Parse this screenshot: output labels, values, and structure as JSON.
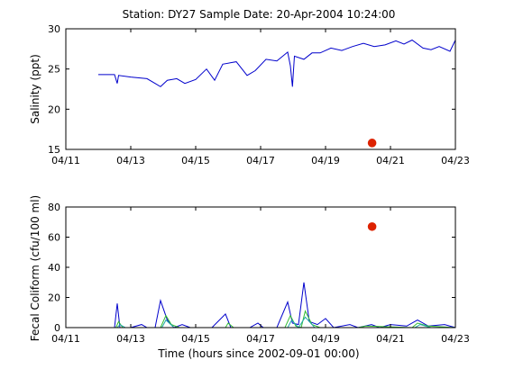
{
  "title": "Station: DY27  Sample Date: 20-Apr-2004 10:24:00",
  "xlabel": "Time (hours since 2002-09-01 00:00)",
  "chart_data": [
    {
      "type": "line",
      "ylabel": "Salinity (ppt)",
      "xlim": [
        "2004-04-11",
        "2004-04-23"
      ],
      "ylim": [
        15,
        30
      ],
      "xticks": [
        "04/11",
        "04/13",
        "04/15",
        "04/17",
        "04/19",
        "04/21",
        "04/23"
      ],
      "yticks": [
        15,
        20,
        25,
        30
      ],
      "grid": false,
      "series": [
        {
          "color": "#0000cc",
          "points": [
            [
              "2004-04-12T00:00",
              24.3
            ],
            [
              "2004-04-12T12:00",
              24.3
            ],
            [
              "2004-04-12T14:00",
              23.2
            ],
            [
              "2004-04-12T15:00",
              24.2
            ],
            [
              "2004-04-13T00:00",
              24.0
            ],
            [
              "2004-04-13T06:00",
              23.9
            ],
            [
              "2004-04-13T12:00",
              23.8
            ],
            [
              "2004-04-13T18:00",
              23.2
            ],
            [
              "2004-04-13T22:00",
              22.8
            ],
            [
              "2004-04-14T03:00",
              23.6
            ],
            [
              "2004-04-14T10:00",
              23.8
            ],
            [
              "2004-04-14T16:00",
              23.2
            ],
            [
              "2004-04-15T00:00",
              23.7
            ],
            [
              "2004-04-15T08:00",
              25.0
            ],
            [
              "2004-04-15T14:00",
              23.6
            ],
            [
              "2004-04-15T20:00",
              25.6
            ],
            [
              "2004-04-16T06:00",
              25.9
            ],
            [
              "2004-04-16T14:00",
              24.2
            ],
            [
              "2004-04-16T20:00",
              24.8
            ],
            [
              "2004-04-17T04:00",
              26.2
            ],
            [
              "2004-04-17T12:00",
              26.0
            ],
            [
              "2004-04-17T20:00",
              27.1
            ],
            [
              "2004-04-17T22:00",
              25.4
            ],
            [
              "2004-04-17T23:30",
              22.8
            ],
            [
              "2004-04-18T01:00",
              26.6
            ],
            [
              "2004-04-18T08:00",
              26.2
            ],
            [
              "2004-04-18T14:00",
              27.0
            ],
            [
              "2004-04-18T20:00",
              27.0
            ],
            [
              "2004-04-19T04:00",
              27.6
            ],
            [
              "2004-04-19T12:00",
              27.3
            ],
            [
              "2004-04-19T20:00",
              27.8
            ],
            [
              "2004-04-20T04:00",
              28.2
            ],
            [
              "2004-04-20T12:00",
              27.8
            ],
            [
              "2004-04-20T20:00",
              28.0
            ],
            [
              "2004-04-21T04:00",
              28.5
            ],
            [
              "2004-04-21T10:00",
              28.1
            ],
            [
              "2004-04-21T16:00",
              28.6
            ],
            [
              "2004-04-22T00:00",
              27.6
            ],
            [
              "2004-04-22T06:00",
              27.4
            ],
            [
              "2004-04-22T12:00",
              27.8
            ],
            [
              "2004-04-22T20:00",
              27.2
            ],
            [
              "2004-04-23T00:00",
              28.6
            ]
          ]
        }
      ],
      "sample_point": {
        "x": "2004-04-20T10:24",
        "y": 15.8,
        "color": "#dd2200"
      }
    },
    {
      "type": "line",
      "ylabel": "Fecal Coliform (cfu/100 ml)",
      "xlim": [
        "2004-04-11",
        "2004-04-23"
      ],
      "ylim": [
        0,
        80
      ],
      "xticks": [
        "04/11",
        "04/13",
        "04/15",
        "04/17",
        "04/19",
        "04/21",
        "04/23"
      ],
      "yticks": [
        0,
        20,
        40,
        60,
        80
      ],
      "grid": false,
      "series": [
        {
          "color": "#0000cc",
          "points": [
            [
              "2004-04-12T00:00",
              0
            ],
            [
              "2004-04-12T12:00",
              0
            ],
            [
              "2004-04-12T14:00",
              16
            ],
            [
              "2004-04-12T16:00",
              0
            ],
            [
              "2004-04-13T00:00",
              0
            ],
            [
              "2004-04-13T08:00",
              2
            ],
            [
              "2004-04-13T12:00",
              0
            ],
            [
              "2004-04-13T18:00",
              0
            ],
            [
              "2004-04-13T22:00",
              18
            ],
            [
              "2004-04-14T03:00",
              5
            ],
            [
              "2004-04-14T08:00",
              0
            ],
            [
              "2004-04-14T14:00",
              2
            ],
            [
              "2004-04-14T20:00",
              0
            ],
            [
              "2004-04-15T12:00",
              0
            ],
            [
              "2004-04-15T22:00",
              9
            ],
            [
              "2004-04-16T02:00",
              0
            ],
            [
              "2004-04-16T16:00",
              0
            ],
            [
              "2004-04-16T22:00",
              3
            ],
            [
              "2004-04-17T02:00",
              0
            ],
            [
              "2004-04-17T12:00",
              0
            ],
            [
              "2004-04-17T20:00",
              17
            ],
            [
              "2004-04-17T23:30",
              3
            ],
            [
              "2004-04-18T04:00",
              2
            ],
            [
              "2004-04-18T08:00",
              30
            ],
            [
              "2004-04-18T12:00",
              4
            ],
            [
              "2004-04-18T18:00",
              2
            ],
            [
              "2004-04-19T00:00",
              6
            ],
            [
              "2004-04-19T06:00",
              0
            ],
            [
              "2004-04-19T18:00",
              2
            ],
            [
              "2004-04-20T00:00",
              0
            ],
            [
              "2004-04-20T10:00",
              2
            ],
            [
              "2004-04-20T16:00",
              0
            ],
            [
              "2004-04-21T00:00",
              2
            ],
            [
              "2004-04-21T12:00",
              1
            ],
            [
              "2004-04-21T20:00",
              5
            ],
            [
              "2004-04-22T04:00",
              1
            ],
            [
              "2004-04-22T16:00",
              2
            ],
            [
              "2004-04-23T00:00",
              0
            ]
          ]
        },
        {
          "color": "#33bb33",
          "points": [
            [
              "2004-04-12T00:00",
              0
            ],
            [
              "2004-04-12T13:00",
              0
            ],
            [
              "2004-04-12T15:00",
              4
            ],
            [
              "2004-04-12T18:00",
              0
            ],
            [
              "2004-04-13T22:00",
              0
            ],
            [
              "2004-04-14T02:00",
              8
            ],
            [
              "2004-04-14T06:00",
              2
            ],
            [
              "2004-04-14T12:00",
              0
            ],
            [
              "2004-04-15T22:00",
              0
            ],
            [
              "2004-04-16T00:00",
              3
            ],
            [
              "2004-04-16T04:00",
              0
            ],
            [
              "2004-04-17T18:00",
              0
            ],
            [
              "2004-04-17T22:00",
              8
            ],
            [
              "2004-04-18T02:00",
              1
            ],
            [
              "2004-04-18T06:00",
              0
            ],
            [
              "2004-04-18T09:00",
              11
            ],
            [
              "2004-04-18T14:00",
              2
            ],
            [
              "2004-04-18T20:00",
              0
            ],
            [
              "2004-04-20T00:00",
              0
            ],
            [
              "2004-04-20T06:00",
              1
            ],
            [
              "2004-04-21T16:00",
              0
            ],
            [
              "2004-04-21T20:00",
              3
            ],
            [
              "2004-04-22T04:00",
              1
            ],
            [
              "2004-04-23T00:00",
              0
            ]
          ]
        },
        {
          "color": "#22aaaa",
          "points": [
            [
              "2004-04-12T00:00",
              0
            ],
            [
              "2004-04-12T14:00",
              0
            ],
            [
              "2004-04-12T16:00",
              2
            ],
            [
              "2004-04-12T20:00",
              0
            ],
            [
              "2004-04-13T23:00",
              0
            ],
            [
              "2004-04-14T02:00",
              5
            ],
            [
              "2004-04-14T08:00",
              0
            ],
            [
              "2004-04-17T20:00",
              0
            ],
            [
              "2004-04-17T23:00",
              5
            ],
            [
              "2004-04-18T04:00",
              0
            ],
            [
              "2004-04-18T09:00",
              7
            ],
            [
              "2004-04-18T16:00",
              0
            ],
            [
              "2004-04-21T18:00",
              0
            ],
            [
              "2004-04-21T22:00",
              2
            ],
            [
              "2004-04-22T06:00",
              0
            ],
            [
              "2004-04-23T00:00",
              0
            ]
          ]
        }
      ],
      "sample_point": {
        "x": "2004-04-20T10:24",
        "y": 67,
        "color": "#dd2200"
      }
    }
  ]
}
